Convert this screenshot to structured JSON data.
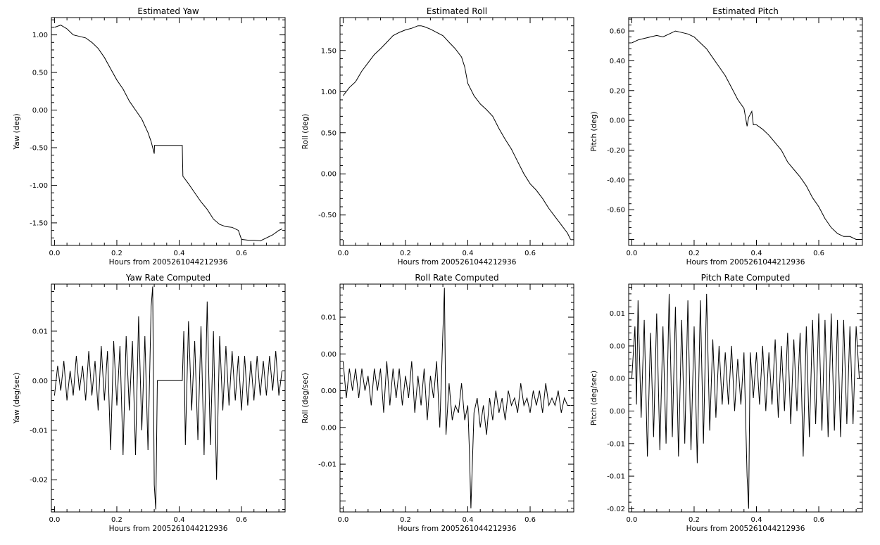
{
  "chart_data": [
    {
      "type": "line",
      "title": "Estimated Yaw",
      "xlabel": "Hours from 2005261044212936",
      "ylabel": "Yaw (deg)",
      "xlim": [
        -0.01,
        0.74
      ],
      "ylim": [
        -1.8,
        1.23
      ],
      "xticks": [
        "0.0",
        "0.2",
        "0.4",
        "0.6"
      ],
      "yticks": [
        "1.00",
        "0.50",
        "0.00",
        "-0.50",
        "-1.00",
        "-1.50"
      ],
      "xtick_values": [
        0,
        0.2,
        0.4,
        0.6
      ],
      "ytick_values": [
        1.0,
        0.5,
        0.0,
        -0.5,
        -1.0,
        -1.5
      ],
      "grid": false,
      "series": [
        {
          "x": [
            0.0,
            0.02,
            0.04,
            0.06,
            0.08,
            0.1,
            0.12,
            0.14,
            0.16,
            0.18,
            0.2,
            0.22,
            0.24,
            0.26,
            0.28,
            0.3,
            0.31,
            0.32,
            0.321,
            0.41,
            0.412,
            0.43,
            0.45,
            0.47,
            0.49,
            0.51,
            0.53,
            0.55,
            0.57,
            0.59,
            0.6,
            0.62,
            0.64,
            0.66,
            0.68,
            0.7,
            0.72,
            0.73
          ],
          "y": [
            1.1,
            1.13,
            1.08,
            1.0,
            0.98,
            0.96,
            0.9,
            0.82,
            0.7,
            0.55,
            0.4,
            0.28,
            0.12,
            0.0,
            -0.12,
            -0.3,
            -0.42,
            -0.58,
            -0.47,
            -0.47,
            -0.88,
            -0.98,
            -1.1,
            -1.22,
            -1.32,
            -1.45,
            -1.52,
            -1.55,
            -1.56,
            -1.6,
            -1.72,
            -1.73,
            -1.73,
            -1.74,
            -1.7,
            -1.66,
            -1.6,
            -1.58
          ]
        }
      ]
    },
    {
      "type": "line",
      "title": "Estimated Roll",
      "xlabel": "Hours from 2005261044212936",
      "ylabel": "Roll (deg)",
      "xlim": [
        -0.01,
        0.74
      ],
      "ylim": [
        -0.87,
        1.9
      ],
      "xticks": [
        "0.0",
        "0.2",
        "0.4",
        "0.6"
      ],
      "yticks": [
        "1.50",
        "1.00",
        "0.50",
        "0.00",
        "-0.50"
      ],
      "xtick_values": [
        0,
        0.2,
        0.4,
        0.6
      ],
      "ytick_values": [
        1.5,
        1.0,
        0.5,
        0.0,
        -0.5
      ],
      "grid": false,
      "series": [
        {
          "x": [
            0.0,
            0.02,
            0.04,
            0.06,
            0.08,
            0.1,
            0.12,
            0.14,
            0.16,
            0.18,
            0.2,
            0.22,
            0.24,
            0.25,
            0.26,
            0.28,
            0.3,
            0.32,
            0.34,
            0.36,
            0.38,
            0.39,
            0.4,
            0.42,
            0.44,
            0.46,
            0.48,
            0.5,
            0.52,
            0.54,
            0.56,
            0.58,
            0.6,
            0.62,
            0.64,
            0.66,
            0.68,
            0.7,
            0.72,
            0.73
          ],
          "y": [
            0.95,
            1.05,
            1.12,
            1.25,
            1.35,
            1.45,
            1.52,
            1.6,
            1.68,
            1.72,
            1.75,
            1.77,
            1.8,
            1.8,
            1.79,
            1.76,
            1.72,
            1.68,
            1.6,
            1.52,
            1.42,
            1.3,
            1.1,
            0.95,
            0.85,
            0.78,
            0.7,
            0.55,
            0.42,
            0.3,
            0.15,
            0.0,
            -0.12,
            -0.2,
            -0.3,
            -0.42,
            -0.52,
            -0.62,
            -0.72,
            -0.8
          ]
        }
      ]
    },
    {
      "type": "line",
      "title": "Estimated Pitch",
      "xlabel": "Hours from 2005261044212936",
      "ylabel": "Pitch (deg)",
      "xlim": [
        -0.01,
        0.74
      ],
      "ylim": [
        -0.84,
        0.69
      ],
      "xticks": [
        "0.0",
        "0.2",
        "0.4",
        "0.6"
      ],
      "yticks": [
        "0.60",
        "0.40",
        "0.20",
        "0.00",
        "-0.20",
        "-0.40",
        "-0.60"
      ],
      "xtick_values": [
        0,
        0.2,
        0.4,
        0.6
      ],
      "ytick_values": [
        0.6,
        0.4,
        0.2,
        0.0,
        -0.2,
        -0.4,
        -0.6
      ],
      "grid": false,
      "series": [
        {
          "x": [
            0.0,
            0.02,
            0.04,
            0.06,
            0.08,
            0.1,
            0.12,
            0.14,
            0.16,
            0.18,
            0.2,
            0.22,
            0.24,
            0.26,
            0.28,
            0.3,
            0.32,
            0.34,
            0.36,
            0.37,
            0.375,
            0.385,
            0.39,
            0.4,
            0.42,
            0.44,
            0.46,
            0.48,
            0.5,
            0.52,
            0.54,
            0.56,
            0.58,
            0.6,
            0.62,
            0.64,
            0.66,
            0.68,
            0.7,
            0.72,
            0.73
          ],
          "y": [
            0.52,
            0.54,
            0.55,
            0.56,
            0.57,
            0.56,
            0.58,
            0.6,
            0.59,
            0.58,
            0.56,
            0.52,
            0.48,
            0.42,
            0.36,
            0.3,
            0.22,
            0.14,
            0.08,
            -0.04,
            0.02,
            0.06,
            -0.03,
            -0.03,
            -0.06,
            -0.1,
            -0.15,
            -0.2,
            -0.28,
            -0.33,
            -0.38,
            -0.44,
            -0.52,
            -0.58,
            -0.66,
            -0.72,
            -0.76,
            -0.78,
            -0.78,
            -0.8,
            -0.8
          ]
        }
      ]
    },
    {
      "type": "line",
      "title": "Yaw Rate Computed",
      "xlabel": "Hours from 2005261044212936",
      "ylabel": "Yaw (deg/sec)",
      "xlim": [
        -0.01,
        0.74
      ],
      "ylim": [
        -0.0265,
        0.0195
      ],
      "xticks": [
        "0.0",
        "0.2",
        "0.4",
        "0.6"
      ],
      "yticks": [
        "0.01",
        "0.00",
        "-0.01",
        "-0.02"
      ],
      "xtick_values": [
        0,
        0.2,
        0.4,
        0.6
      ],
      "ytick_values": [
        0.01,
        0.0,
        -0.01,
        -0.02
      ],
      "grid": false,
      "series": [
        {
          "x": [
            0.0,
            0.01,
            0.02,
            0.03,
            0.04,
            0.05,
            0.06,
            0.07,
            0.08,
            0.09,
            0.1,
            0.11,
            0.12,
            0.13,
            0.14,
            0.15,
            0.16,
            0.17,
            0.18,
            0.19,
            0.2,
            0.21,
            0.22,
            0.23,
            0.24,
            0.25,
            0.26,
            0.27,
            0.28,
            0.29,
            0.3,
            0.31,
            0.315,
            0.32,
            0.325,
            0.33,
            0.41,
            0.415,
            0.42,
            0.43,
            0.44,
            0.45,
            0.46,
            0.47,
            0.48,
            0.49,
            0.5,
            0.51,
            0.52,
            0.53,
            0.54,
            0.55,
            0.56,
            0.57,
            0.58,
            0.59,
            0.6,
            0.61,
            0.62,
            0.63,
            0.64,
            0.65,
            0.66,
            0.67,
            0.68,
            0.69,
            0.7,
            0.71,
            0.72,
            0.73
          ],
          "y": [
            -0.003,
            0.003,
            -0.002,
            0.004,
            -0.004,
            0.002,
            -0.003,
            0.005,
            -0.002,
            0.003,
            -0.004,
            0.006,
            -0.003,
            0.004,
            -0.006,
            0.007,
            -0.004,
            0.006,
            -0.014,
            0.008,
            -0.005,
            0.007,
            -0.015,
            0.009,
            -0.006,
            0.008,
            -0.015,
            0.013,
            -0.01,
            0.009,
            -0.014,
            0.015,
            0.019,
            -0.021,
            -0.026,
            0.0,
            0.0,
            0.01,
            -0.013,
            0.012,
            -0.006,
            0.008,
            -0.012,
            0.011,
            -0.015,
            0.016,
            -0.013,
            0.01,
            -0.02,
            0.009,
            -0.006,
            0.007,
            -0.005,
            0.006,
            -0.004,
            0.005,
            -0.006,
            0.005,
            -0.005,
            0.004,
            -0.004,
            0.005,
            -0.003,
            0.004,
            -0.003,
            0.005,
            -0.002,
            0.006,
            -0.003,
            0.002
          ]
        }
      ]
    },
    {
      "type": "line",
      "title": "Roll Rate Computed",
      "xlabel": "Hours from 2005261044212936",
      "ylabel": "Roll (deg/sec)",
      "xlim": [
        -0.01,
        0.74
      ],
      "ylim": [
        -0.0165,
        0.0145
      ],
      "xticks": [
        "0.0",
        "0.2",
        "0.4",
        "0.6"
      ],
      "yticks": [
        "0.01",
        "0.00",
        "0.00",
        "0.00",
        "-0.01"
      ],
      "xtick_values": [
        0,
        0.2,
        0.4,
        0.6
      ],
      "ytick_values": [
        0.01,
        0.005,
        0.0,
        -0.005,
        -0.01
      ],
      "grid": false,
      "series": [
        {
          "x": [
            0.0,
            0.01,
            0.02,
            0.03,
            0.04,
            0.05,
            0.06,
            0.07,
            0.08,
            0.09,
            0.1,
            0.11,
            0.12,
            0.13,
            0.14,
            0.15,
            0.16,
            0.17,
            0.18,
            0.19,
            0.2,
            0.21,
            0.22,
            0.23,
            0.24,
            0.25,
            0.26,
            0.27,
            0.28,
            0.29,
            0.3,
            0.31,
            0.32,
            0.325,
            0.33,
            0.34,
            0.35,
            0.36,
            0.37,
            0.38,
            0.39,
            0.4,
            0.405,
            0.41,
            0.42,
            0.43,
            0.44,
            0.45,
            0.46,
            0.47,
            0.48,
            0.49,
            0.5,
            0.51,
            0.52,
            0.53,
            0.54,
            0.55,
            0.56,
            0.57,
            0.58,
            0.59,
            0.6,
            0.61,
            0.62,
            0.63,
            0.64,
            0.65,
            0.66,
            0.67,
            0.68,
            0.69,
            0.7,
            0.71,
            0.72,
            0.73
          ],
          "y": [
            0.004,
            -0.001,
            0.003,
            0.0,
            0.003,
            -0.001,
            0.003,
            0.0,
            0.002,
            -0.002,
            0.003,
            0.0,
            0.003,
            -0.003,
            0.004,
            -0.002,
            0.003,
            -0.001,
            0.003,
            -0.002,
            0.002,
            -0.001,
            0.004,
            -0.003,
            0.002,
            -0.002,
            0.003,
            -0.004,
            0.002,
            -0.001,
            0.004,
            -0.005,
            0.008,
            0.014,
            -0.006,
            0.001,
            -0.004,
            -0.002,
            -0.003,
            0.001,
            -0.004,
            -0.002,
            -0.008,
            -0.016,
            -0.003,
            -0.001,
            -0.005,
            -0.002,
            -0.006,
            -0.001,
            -0.004,
            0.0,
            -0.003,
            -0.001,
            -0.004,
            0.0,
            -0.002,
            -0.001,
            -0.003,
            0.001,
            -0.002,
            -0.001,
            -0.003,
            0.0,
            -0.002,
            0.0,
            -0.003,
            0.001,
            -0.002,
            -0.001,
            -0.002,
            0.0,
            -0.003,
            -0.001,
            -0.002,
            -0.002
          ]
        }
      ]
    },
    {
      "type": "line",
      "title": "Pitch Rate Computed",
      "xlabel": "Hours from 2005261044212936",
      "ylabel": "Pitch (deg/sec)",
      "xlim": [
        -0.01,
        0.74
      ],
      "ylim": [
        -0.0205,
        0.0145
      ],
      "xticks": [
        "0.0",
        "0.2",
        "0.4",
        "0.6"
      ],
      "yticks": [
        "0.01",
        "0.00",
        "0.00",
        "0.00",
        "-0.01",
        "-0.01",
        "-0.02"
      ],
      "xtick_values": [
        0,
        0.2,
        0.4,
        0.6
      ],
      "ytick_values": [
        0.01,
        0.005,
        0.0,
        -0.005,
        -0.01,
        -0.015,
        -0.02
      ],
      "grid": false,
      "series": [
        {
          "x": [
            0.0,
            0.01,
            0.015,
            0.02,
            0.03,
            0.04,
            0.05,
            0.06,
            0.07,
            0.08,
            0.09,
            0.1,
            0.11,
            0.12,
            0.13,
            0.14,
            0.15,
            0.16,
            0.17,
            0.18,
            0.19,
            0.2,
            0.21,
            0.22,
            0.23,
            0.24,
            0.25,
            0.26,
            0.27,
            0.28,
            0.29,
            0.3,
            0.31,
            0.32,
            0.33,
            0.34,
            0.35,
            0.36,
            0.37,
            0.375,
            0.38,
            0.39,
            0.4,
            0.41,
            0.42,
            0.43,
            0.44,
            0.45,
            0.46,
            0.47,
            0.48,
            0.49,
            0.5,
            0.51,
            0.52,
            0.53,
            0.54,
            0.55,
            0.56,
            0.57,
            0.58,
            0.59,
            0.6,
            0.61,
            0.62,
            0.63,
            0.64,
            0.65,
            0.66,
            0.67,
            0.68,
            0.69,
            0.7,
            0.71,
            0.72,
            0.73
          ],
          "y": [
            0.0,
            0.008,
            -0.004,
            0.012,
            -0.006,
            0.009,
            -0.012,
            0.007,
            -0.009,
            0.01,
            -0.011,
            0.008,
            -0.01,
            0.013,
            -0.009,
            0.011,
            -0.012,
            0.009,
            -0.01,
            0.012,
            -0.011,
            0.008,
            -0.013,
            0.012,
            -0.01,
            0.013,
            -0.008,
            0.006,
            -0.006,
            0.005,
            -0.004,
            0.004,
            -0.004,
            0.005,
            -0.005,
            0.003,
            -0.004,
            0.004,
            -0.015,
            -0.02,
            0.004,
            -0.003,
            0.004,
            -0.004,
            0.005,
            -0.005,
            0.004,
            -0.004,
            0.006,
            -0.006,
            0.005,
            -0.005,
            0.007,
            -0.007,
            0.006,
            -0.005,
            0.007,
            -0.012,
            0.008,
            -0.009,
            0.009,
            -0.007,
            0.01,
            -0.008,
            0.009,
            -0.009,
            0.01,
            -0.008,
            0.009,
            -0.009,
            0.009,
            -0.007,
            0.008,
            -0.007,
            0.008,
            0.0
          ]
        }
      ]
    }
  ]
}
